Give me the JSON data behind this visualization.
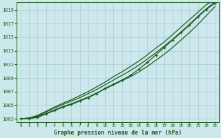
{
  "title": "Graphe pression niveau de la mer (hPa)",
  "bg_color": "#cce8ec",
  "grid_color": "#aaccd4",
  "line_color": "#1a5c1a",
  "text_color": "#1a5c1a",
  "x_values": [
    0,
    1,
    2,
    3,
    4,
    5,
    6,
    7,
    8,
    9,
    10,
    11,
    12,
    13,
    14,
    15,
    16,
    17,
    18,
    19,
    20,
    21,
    22,
    23
  ],
  "line1": [
    1003.0,
    1003.1,
    1003.3,
    1003.8,
    1004.3,
    1004.8,
    1005.2,
    1005.7,
    1006.2,
    1006.8,
    1007.4,
    1008.0,
    1008.6,
    1009.2,
    1009.9,
    1010.7,
    1011.6,
    1012.5,
    1013.5,
    1014.6,
    1015.7,
    1016.9,
    1018.2,
    1019.5
  ],
  "line2": [
    1003.0,
    1003.1,
    1003.4,
    1004.0,
    1004.6,
    1005.1,
    1005.6,
    1006.1,
    1006.7,
    1007.3,
    1008.0,
    1008.7,
    1009.4,
    1010.1,
    1010.9,
    1011.8,
    1012.7,
    1013.7,
    1014.7,
    1015.8,
    1016.9,
    1018.1,
    1019.2,
    1020.2
  ],
  "line3": [
    1003.0,
    1003.1,
    1003.5,
    1004.1,
    1004.7,
    1005.3,
    1005.8,
    1006.4,
    1007.0,
    1007.7,
    1008.4,
    1009.2,
    1009.9,
    1010.7,
    1011.5,
    1012.4,
    1013.4,
    1014.3,
    1015.4,
    1016.5,
    1017.6,
    1018.7,
    1019.8,
    1020.5
  ],
  "line4_markers": [
    1003.0,
    1003.0,
    1003.2,
    1003.7,
    1004.2,
    1004.7,
    1005.1,
    1005.6,
    1006.1,
    1006.7,
    1007.5,
    1008.1,
    1008.7,
    1009.4,
    1010.3,
    1011.3,
    1012.4,
    1013.5,
    1014.6,
    1015.7,
    1016.8,
    1018.0,
    1019.1,
    1020.0
  ],
  "ylim": [
    1002.5,
    1020.2
  ],
  "yticks": [
    1003,
    1005,
    1007,
    1009,
    1011,
    1013,
    1015,
    1017,
    1019
  ],
  "xlim": [
    -0.5,
    23.5
  ]
}
